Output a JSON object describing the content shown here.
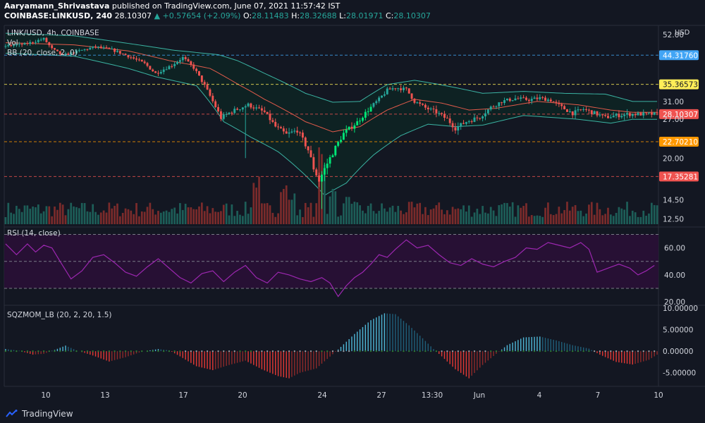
{
  "header": {
    "author": "Aaryamann_Shrivastava",
    "published": "published on TradingView.com, June 07, 2021 11:57:42 IST",
    "symbol": "COINBASE:LINKUSD, 240",
    "price": "28.10307",
    "change": "▲ +0.57654 (+2.09%)",
    "o_label": "O:",
    "o": "28.11483",
    "h_label": "H:",
    "h": "28.32688",
    "l_label": "L:",
    "l": "28.01971",
    "c_label": "C:",
    "c": "28.10307"
  },
  "legend": {
    "title": "LINK/USD, 4h, COINBASE",
    "vol": "Vol",
    "bb": "BB (20, close, 2, 0)",
    "rsi": "RSI (14, close)",
    "sqz": "SQZMOM_LB (20, 2, 20, 1.5)"
  },
  "footer": {
    "brand": "TradingView"
  },
  "colors": {
    "background": "#131722",
    "up": "#26a69a",
    "up_bright": "#00e676",
    "down": "#ef5350",
    "bb_band": "#3bb3a3",
    "bb_basis": "#e25b4b",
    "rsi_line": "#9c27b0",
    "rsi_bg": "#2a1036",
    "sqz_up": "#4fb8d8",
    "sqz_down": "#e53935",
    "hl_44": "#42a5f5",
    "hl_35": "#ffee58",
    "hl_22": "#ff9800",
    "hl_17": "#ef5350",
    "hl_28": "#ef5350"
  },
  "chart_data": [
    {
      "type": "candlestick",
      "name": "price",
      "currency_label": "USD",
      "ylim": [
        12,
        54
      ],
      "y_ticks": [
        "52.00",
        "31.00",
        "27.00",
        "20.00",
        "14.50",
        "12.50"
      ],
      "x_ticks": [
        "10",
        "13",
        "17",
        "20",
        "24",
        "27",
        "13:30",
        "Jun",
        "4",
        "7",
        "10"
      ],
      "price_levels": [
        {
          "value": 44.3176,
          "label": "44.31760",
          "color": "#42a5f5"
        },
        {
          "value": 35.36573,
          "label": "35.36573",
          "color": "#ffee58"
        },
        {
          "value": 28.10307,
          "label": "28.10307",
          "color": "#ef5350"
        },
        {
          "value": 22.7021,
          "label": "22.70210",
          "color": "#ff9800"
        },
        {
          "value": 17.35281,
          "label": "17.35281",
          "color": "#ef5350"
        }
      ],
      "anchors": [
        [
          0,
          47.5
        ],
        [
          8,
          48.2
        ],
        [
          15,
          50.3
        ],
        [
          18,
          46.5
        ],
        [
          22,
          44.2
        ],
        [
          28,
          45.8
        ],
        [
          34,
          47.3
        ],
        [
          40,
          46.2
        ],
        [
          46,
          44.0
        ],
        [
          52,
          41.5
        ],
        [
          56,
          38.5
        ],
        [
          62,
          41.0
        ],
        [
          66,
          43.5
        ],
        [
          70,
          40.2
        ],
        [
          74,
          35.0
        ],
        [
          77,
          31.0
        ],
        [
          80,
          27.3
        ],
        [
          84,
          28.7
        ],
        [
          90,
          30.2
        ],
        [
          96,
          28.5
        ],
        [
          100,
          25.5
        ],
        [
          104,
          24.0
        ],
        [
          108,
          24.8
        ],
        [
          112,
          21.3
        ],
        [
          114,
          18.5
        ],
        [
          116,
          16.8
        ],
        [
          120,
          20.0
        ],
        [
          125,
          24.2
        ],
        [
          130,
          26.4
        ],
        [
          134,
          29.0
        ],
        [
          138,
          31.5
        ],
        [
          141,
          33.8
        ],
        [
          144,
          34.5
        ],
        [
          148,
          34.0
        ],
        [
          151,
          31.0
        ],
        [
          155,
          29.5
        ],
        [
          159,
          28.5
        ],
        [
          163,
          27.0
        ],
        [
          166,
          25.2
        ],
        [
          170,
          26.5
        ],
        [
          175,
          27.5
        ],
        [
          179,
          29.6
        ],
        [
          183,
          31.0
        ],
        [
          188,
          31.7
        ],
        [
          193,
          31.4
        ],
        [
          197,
          31.8
        ],
        [
          201,
          31.3
        ],
        [
          205,
          29.6
        ],
        [
          209,
          28.3
        ],
        [
          213,
          29.2
        ],
        [
          217,
          28.3
        ],
        [
          221,
          27.4
        ],
        [
          225,
          27.8
        ],
        [
          230,
          28.1
        ]
      ],
      "spikes": [
        [
          88,
          20.0
        ],
        [
          116,
          13.5
        ],
        [
          115,
          16.0
        ]
      ],
      "bb_upper": [
        [
          0,
          52.5
        ],
        [
          25,
          51.5
        ],
        [
          50,
          47.8
        ],
        [
          62,
          46.0
        ],
        [
          78,
          44.5
        ],
        [
          85,
          42.5
        ],
        [
          95,
          38.5
        ],
        [
          110,
          33.0
        ],
        [
          120,
          30.8
        ],
        [
          130,
          31.0
        ],
        [
          140,
          35.3
        ],
        [
          150,
          36.5
        ],
        [
          158,
          35.5
        ],
        [
          165,
          34.5
        ],
        [
          175,
          33.0
        ],
        [
          190,
          33.5
        ],
        [
          205,
          33.0
        ],
        [
          220,
          32.8
        ],
        [
          230,
          31.0
        ]
      ],
      "bb_lower": [
        [
          0,
          45.0
        ],
        [
          25,
          44.0
        ],
        [
          45,
          40.0
        ],
        [
          55,
          37.5
        ],
        [
          70,
          35.0
        ],
        [
          80,
          26.5
        ],
        [
          90,
          23.5
        ],
        [
          100,
          21.0
        ],
        [
          110,
          17.5
        ],
        [
          117,
          15.0
        ],
        [
          125,
          16.5
        ],
        [
          135,
          20.5
        ],
        [
          145,
          23.8
        ],
        [
          155,
          26.0
        ],
        [
          165,
          25.5
        ],
        [
          175,
          25.8
        ],
        [
          190,
          27.8
        ],
        [
          210,
          27.0
        ],
        [
          222,
          26.2
        ],
        [
          230,
          27.0
        ]
      ],
      "bb_basis": [
        [
          0,
          48.8
        ],
        [
          25,
          48.0
        ],
        [
          45,
          45.8
        ],
        [
          60,
          42.5
        ],
        [
          75,
          40.0
        ],
        [
          85,
          35.5
        ],
        [
          95,
          31.5
        ],
        [
          110,
          26.5
        ],
        [
          120,
          24.5
        ],
        [
          130,
          25.5
        ],
        [
          140,
          29.0
        ],
        [
          150,
          31.5
        ],
        [
          160,
          30.6
        ],
        [
          170,
          29.0
        ],
        [
          180,
          29.4
        ],
        [
          195,
          31.0
        ],
        [
          210,
          30.2
        ],
        [
          222,
          29.0
        ],
        [
          230,
          28.5
        ]
      ]
    },
    {
      "type": "bar",
      "name": "Vol",
      "event_bars": [
        [
          92,
          70
        ],
        [
          102,
          65
        ],
        [
          116,
          110
        ],
        [
          120,
          55
        ],
        [
          105,
          45
        ],
        [
          125,
          40
        ]
      ]
    },
    {
      "type": "line",
      "name": "RSI",
      "ylim": [
        18,
        75
      ],
      "y_ticks": [
        "60.00",
        "40.00",
        "20.00"
      ],
      "overbought": 70,
      "oversold": 30,
      "midline": 50,
      "points": [
        [
          0,
          63
        ],
        [
          4,
          55
        ],
        [
          8,
          63
        ],
        [
          11,
          57
        ],
        [
          14,
          62
        ],
        [
          17,
          60
        ],
        [
          20,
          50
        ],
        [
          24,
          37
        ],
        [
          28,
          43
        ],
        [
          32,
          53
        ],
        [
          36,
          55
        ],
        [
          40,
          49
        ],
        [
          44,
          42
        ],
        [
          48,
          39
        ],
        [
          52,
          46
        ],
        [
          56,
          52
        ],
        [
          60,
          45
        ],
        [
          64,
          38
        ],
        [
          68,
          34
        ],
        [
          72,
          41
        ],
        [
          76,
          43
        ],
        [
          80,
          35
        ],
        [
          84,
          42
        ],
        [
          88,
          47
        ],
        [
          92,
          38
        ],
        [
          96,
          34
        ],
        [
          100,
          42
        ],
        [
          104,
          40
        ],
        [
          108,
          37
        ],
        [
          112,
          35
        ],
        [
          116,
          38
        ],
        [
          119,
          34
        ],
        [
          122,
          24
        ],
        [
          125,
          32
        ],
        [
          128,
          38
        ],
        [
          131,
          42
        ],
        [
          134,
          48
        ],
        [
          137,
          55
        ],
        [
          140,
          53
        ],
        [
          143,
          59
        ],
        [
          147,
          66
        ],
        [
          151,
          60
        ],
        [
          155,
          62
        ],
        [
          159,
          55
        ],
        [
          163,
          49
        ],
        [
          167,
          47
        ],
        [
          171,
          52
        ],
        [
          175,
          48
        ],
        [
          179,
          46
        ],
        [
          183,
          50
        ],
        [
          187,
          53
        ],
        [
          191,
          60
        ],
        [
          195,
          59
        ],
        [
          199,
          64
        ],
        [
          203,
          62
        ],
        [
          207,
          60
        ],
        [
          211,
          64
        ],
        [
          214,
          59
        ],
        [
          217,
          42
        ],
        [
          221,
          45
        ],
        [
          225,
          48
        ],
        [
          229,
          45
        ],
        [
          232,
          40
        ],
        [
          235,
          43
        ],
        [
          238,
          47
        ]
      ]
    },
    {
      "type": "histogram",
      "name": "SQZMOM_LB",
      "ylim": [
        -8,
        10.5
      ],
      "y_ticks": [
        "10.00000",
        "5.00000",
        "0.00000",
        "-5.00000"
      ],
      "anchors": [
        [
          0,
          0.5
        ],
        [
          5,
          0.1
        ],
        [
          10,
          -0.8
        ],
        [
          14,
          -0.6
        ],
        [
          18,
          0.3
        ],
        [
          22,
          1.3
        ],
        [
          26,
          0.2
        ],
        [
          32,
          -1.0
        ],
        [
          38,
          -2.4
        ],
        [
          44,
          -1.4
        ],
        [
          50,
          -0.1
        ],
        [
          56,
          0.5
        ],
        [
          60,
          0.2
        ],
        [
          64,
          -1.2
        ],
        [
          70,
          -3.5
        ],
        [
          76,
          -4.4
        ],
        [
          82,
          -3.2
        ],
        [
          88,
          -2.2
        ],
        [
          94,
          -4.2
        ],
        [
          100,
          -5.8
        ],
        [
          104,
          -6.3
        ],
        [
          108,
          -5.0
        ],
        [
          114,
          -4.0
        ],
        [
          118,
          -1.8
        ],
        [
          122,
          0.4
        ],
        [
          128,
          4.0
        ],
        [
          134,
          7.2
        ],
        [
          139,
          8.8
        ],
        [
          143,
          8.6
        ],
        [
          148,
          6.0
        ],
        [
          153,
          3.0
        ],
        [
          157,
          0.5
        ],
        [
          160,
          -1.2
        ],
        [
          165,
          -4.2
        ],
        [
          170,
          -6.3
        ],
        [
          175,
          -3.2
        ],
        [
          180,
          -0.6
        ],
        [
          184,
          1.4
        ],
        [
          190,
          3.2
        ],
        [
          196,
          3.4
        ],
        [
          202,
          2.5
        ],
        [
          208,
          1.4
        ],
        [
          214,
          0.6
        ],
        [
          218,
          -0.8
        ],
        [
          224,
          -2.5
        ],
        [
          230,
          -3.1
        ],
        [
          236,
          -2.0
        ],
        [
          239,
          -0.8
        ]
      ],
      "squeeze_on_ranges": [
        [
          65,
          84
        ],
        [
          92,
          115
        ],
        [
          119,
          126
        ],
        [
          160,
          177
        ],
        [
          215,
          238
        ]
      ]
    }
  ]
}
